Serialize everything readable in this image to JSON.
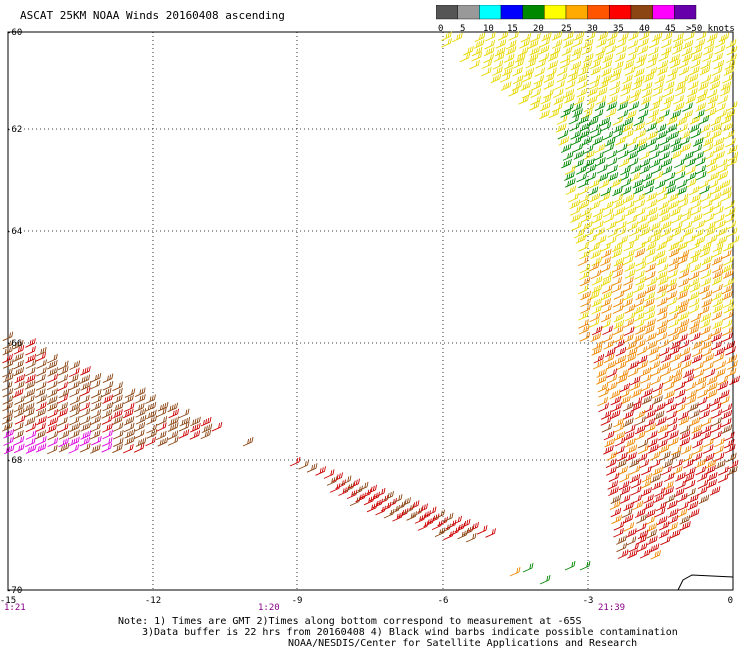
{
  "header": {
    "title": "ASCAT 25KM NOAA Winds 20160408 ascending"
  },
  "legend": {
    "ticks": [
      "0",
      "5",
      "10",
      "15",
      "20",
      "25",
      "30",
      "35",
      "40",
      "45",
      ">50 knots"
    ],
    "colors": [
      "#555555",
      "#999999",
      "#00ffff",
      "#0000ff",
      "#008800",
      "#ffff00",
      "#ffaa00",
      "#ff5500",
      "#ff0000",
      "#8b4513",
      "#ff00ff",
      "#6600aa"
    ]
  },
  "map": {
    "lon_ticks": [
      "-15",
      "-12",
      "-9",
      "-6",
      "-3",
      "0"
    ],
    "lat_ticks": [
      "-60",
      "-62",
      "-64",
      "-66",
      "-68",
      "-70"
    ],
    "times": [
      "1:21",
      "1:20",
      "21:39"
    ],
    "colors": {
      "yellow": "#e8d800",
      "green": "#008800",
      "orange": "#ee8800",
      "red": "#cc0000",
      "brown": "#8b4513",
      "magenta": "#dd00dd",
      "time_label": "#880088"
    }
  },
  "notes": {
    "line1": "Note: 1) Times are GMT 2)Times along bottom correspond to measurement at -65S",
    "line2": "3)Data buffer is 22 hrs from 20160408 4) Black wind barbs indicate possible contamination",
    "line3": "NOAA/NESDIS/Center for Satellite Applications and Research"
  }
}
